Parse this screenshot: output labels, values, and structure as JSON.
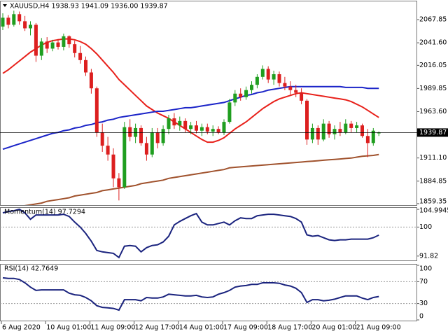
{
  "chart_data": [
    {
      "type": "candlestick",
      "title": "XAUUSD,H4  1938.93 1941.09 1936.00 1939.87",
      "up_color": "#1f9e1f",
      "down_color": "#dc1f1f",
      "ylim": [
        1857.7,
        2088.5
      ],
      "yticks": [
        2067.85,
        {
          "value": 2041.6,
          "label": "2041.60"
        },
        2016.05,
        1989.85,
        {
          "value": 1963.6,
          "label": "1963.60"
        },
        {
          "value": 1911.1,
          "label": "1911.10"
        },
        1884.85,
        1859.35
      ],
      "categories": [
        "6 Aug 2020",
        null,
        null,
        null,
        null,
        null,
        null,
        null,
        "10 Aug 01:00",
        null,
        null,
        null,
        null,
        null,
        null,
        null,
        "11 Aug 09:00",
        null,
        null,
        null,
        null,
        null,
        null,
        null,
        "12 Aug 17:00",
        null,
        null,
        null,
        null,
        null,
        null,
        null,
        "14 Aug 01:00",
        null,
        null,
        null,
        null,
        null,
        null,
        null,
        "17 Aug 09:00",
        null,
        null,
        null,
        null,
        null,
        null,
        null,
        "18 Aug 17:00",
        null,
        null,
        null,
        null,
        null,
        null,
        null,
        "20 Aug 01:00",
        null,
        null,
        null,
        null,
        null,
        null,
        null,
        "21 Aug 09:00",
        null,
        null,
        null,
        null
      ],
      "ohlc": [
        [
          2060,
          2075,
          2056,
          2070
        ],
        [
          2070,
          2073,
          2058,
          2062
        ],
        [
          2062,
          2078,
          2060,
          2074
        ],
        [
          2074,
          2077,
          2062,
          2066
        ],
        [
          2066,
          2072,
          2055,
          2058
        ],
        [
          2058,
          2066,
          2050,
          2062
        ],
        [
          2062,
          2064,
          2020,
          2027
        ],
        [
          2027,
          2047,
          2022,
          2043
        ],
        [
          2043,
          2048,
          2030,
          2035
        ],
        [
          2035,
          2045,
          2032,
          2042
        ],
        [
          2042,
          2046,
          2034,
          2037
        ],
        [
          2037,
          2052,
          2033,
          2049
        ],
        [
          2049,
          2050,
          2036,
          2040
        ],
        [
          2040,
          2044,
          2025,
          2030
        ],
        [
          2030,
          2038,
          2018,
          2022
        ],
        [
          2022,
          2026,
          2004,
          2008
        ],
        [
          2008,
          2012,
          1984,
          1990
        ],
        [
          1990,
          1992,
          1935,
          1940
        ],
        [
          1940,
          1950,
          1918,
          1925
        ],
        [
          1925,
          1935,
          1908,
          1915
        ],
        [
          1915,
          1922,
          1878,
          1888
        ],
        [
          1888,
          1894,
          1863,
          1878
        ],
        [
          1878,
          1952,
          1876,
          1946
        ],
        [
          1946,
          1955,
          1930,
          1935
        ],
        [
          1935,
          1950,
          1928,
          1945
        ],
        [
          1945,
          1948,
          1925,
          1928
        ],
        [
          1928,
          1935,
          1908,
          1915
        ],
        [
          1915,
          1945,
          1912,
          1940
        ],
        [
          1940,
          1945,
          1922,
          1928
        ],
        [
          1928,
          1948,
          1925,
          1944
        ],
        [
          1944,
          1960,
          1938,
          1956
        ],
        [
          1956,
          1962,
          1944,
          1948
        ],
        [
          1948,
          1958,
          1942,
          1953
        ],
        [
          1953,
          1956,
          1940,
          1944
        ],
        [
          1944,
          1952,
          1938,
          1948
        ],
        [
          1948,
          1953,
          1939,
          1942
        ],
        [
          1942,
          1950,
          1936,
          1946
        ],
        [
          1946,
          1950,
          1938,
          1941
        ],
        [
          1941,
          1948,
          1936,
          1944
        ],
        [
          1944,
          1947,
          1938,
          1940
        ],
        [
          1940,
          1955,
          1937,
          1952
        ],
        [
          1952,
          1978,
          1950,
          1974
        ],
        [
          1974,
          1988,
          1970,
          1984
        ],
        [
          1984,
          1990,
          1976,
          1980
        ],
        [
          1980,
          1992,
          1977,
          1988
        ],
        [
          1988,
          1998,
          1984,
          1994
        ],
        [
          1994,
          2006,
          1990,
          2003
        ],
        [
          2003,
          2016,
          2000,
          2012
        ],
        [
          2012,
          2015,
          1996,
          2000
        ],
        [
          2000,
          2010,
          1994,
          2006
        ],
        [
          2006,
          2009,
          1992,
          1996
        ],
        [
          1996,
          2003,
          1988,
          1992
        ],
        [
          1992,
          1998,
          1983,
          1988
        ],
        [
          1988,
          1994,
          1980,
          1985
        ],
        [
          1985,
          1990,
          1972,
          1976
        ],
        [
          1976,
          1978,
          1926,
          1932
        ],
        [
          1932,
          1950,
          1928,
          1945
        ],
        [
          1945,
          1948,
          1926,
          1932
        ],
        [
          1932,
          1955,
          1930,
          1950
        ],
        [
          1950,
          1953,
          1934,
          1938
        ],
        [
          1938,
          1948,
          1932,
          1944
        ],
        [
          1944,
          1952,
          1936,
          1940
        ],
        [
          1940,
          1955,
          1938,
          1950
        ],
        [
          1950,
          1953,
          1940,
          1945
        ],
        [
          1945,
          1952,
          1940,
          1948
        ],
        [
          1948,
          1950,
          1934,
          1936
        ],
        [
          1936,
          1944,
          1912,
          1928
        ],
        [
          1928,
          1945,
          1925,
          1942
        ],
        [
          1938.93,
          1941.09,
          1936.0,
          1939.87
        ]
      ],
      "overlays": [
        {
          "color": "#e8201a",
          "values": [
            2007,
            2011,
            2016,
            2021,
            2026,
            2031,
            2035,
            2039,
            2042,
            2044,
            2045,
            2046,
            2046,
            2045,
            2043,
            2040,
            2035,
            2029,
            2022,
            2015,
            2008,
            2000,
            1994,
            1988,
            1982,
            1976,
            1970,
            1966,
            1962,
            1959,
            1956,
            1952,
            1948,
            1944,
            1940,
            1936,
            1932,
            1929,
            1929,
            1931,
            1934,
            1939,
            1944,
            1948,
            1952,
            1957,
            1962,
            1967,
            1971,
            1975,
            1978,
            1980,
            1982,
            1984,
            1985,
            1984,
            1983,
            1982,
            1981,
            1980,
            1979,
            1978,
            1977,
            1975,
            1972,
            1969,
            1965,
            1961,
            1957
          ]
        },
        {
          "color": "#1b24c8",
          "values": [
            1921,
            1923,
            1925,
            1927,
            1929,
            1931,
            1933,
            1935,
            1937,
            1939,
            1940,
            1942,
            1943,
            1945,
            1946,
            1948,
            1949,
            1951,
            1952,
            1954,
            1955,
            1957,
            1958,
            1959,
            1960,
            1961,
            1962,
            1963,
            1964,
            1964,
            1965,
            1966,
            1967,
            1968,
            1968,
            1969,
            1970,
            1971,
            1972,
            1973,
            1974,
            1976,
            1978,
            1980,
            1982,
            1983,
            1985,
            1986,
            1988,
            1989,
            1990,
            1991,
            1992,
            1992,
            1992,
            1992,
            1992,
            1992,
            1992,
            1992,
            1992,
            1992,
            1991,
            1991,
            1991,
            1991,
            1990,
            1990,
            1990
          ]
        },
        {
          "color": "#a0522d",
          "values": [
            1852,
            1853,
            1854,
            1856,
            1857,
            1858,
            1859,
            1860,
            1862,
            1863,
            1864,
            1865,
            1866,
            1868,
            1869,
            1870,
            1871,
            1872,
            1874,
            1875,
            1876,
            1877,
            1878,
            1879,
            1880,
            1882,
            1883,
            1884,
            1885,
            1886,
            1888,
            1889,
            1890,
            1891,
            1892,
            1893,
            1894,
            1895,
            1896,
            1897,
            1898,
            1900,
            1900.5,
            1901,
            1901.5,
            1902,
            1902.5,
            1903,
            1903.5,
            1904,
            1904.5,
            1905,
            1905.5,
            1906,
            1906.5,
            1907,
            1907.5,
            1908,
            1908.5,
            1909,
            1909.5,
            1910,
            1910.5,
            1911,
            1912,
            1913,
            1913.5,
            1914,
            1915
          ]
        }
      ]
    },
    {
      "type": "line",
      "title": "Momentum(14) 97.7294",
      "color": "#1a237e",
      "ylim": [
        90.6,
        105.6
      ],
      "yticks": [
        104.9945,
        100,
        91.82
      ],
      "levels": [
        100
      ],
      "values": [
        104.0,
        104.4,
        104.6,
        105.0,
        104.0,
        102.2,
        103.4,
        103.4,
        103.4,
        103.4,
        103.4,
        103.6,
        103.0,
        101.4,
        100.0,
        98.2,
        96.0,
        93.4,
        93.0,
        92.8,
        92.6,
        91.4,
        94.6,
        94.8,
        94.6,
        93.0,
        94.2,
        94.8,
        95.0,
        95.8,
        97.4,
        100.6,
        101.6,
        102.4,
        103.2,
        103.8,
        101.4,
        100.6,
        100.6,
        101.0,
        101.4,
        100.6,
        101.8,
        102.6,
        102.4,
        102.4,
        103.2,
        103.4,
        103.6,
        103.6,
        103.4,
        103.2,
        103.0,
        102.4,
        101.4,
        97.8,
        97.4,
        97.6,
        97.0,
        96.4,
        96.2,
        96.4,
        96.4,
        96.6,
        96.6,
        96.6,
        96.6,
        97.0,
        97.73
      ]
    },
    {
      "type": "line",
      "title": "RSI(14) 42.7649",
      "color": "#1a237e",
      "ylim": [
        0,
        100
      ],
      "yticks": [
        100,
        70,
        30,
        0
      ],
      "levels": [
        70,
        30
      ],
      "values": [
        77,
        76,
        76,
        74,
        68,
        60,
        54,
        55,
        55,
        55,
        55,
        55,
        49,
        46,
        45,
        41,
        35,
        26,
        23,
        22,
        21,
        18,
        37,
        37,
        37,
        35,
        41,
        40,
        40,
        42,
        47,
        46,
        45,
        44,
        44,
        45,
        42,
        41,
        42,
        47,
        50,
        54,
        60,
        62,
        63,
        65,
        65,
        68,
        68,
        68,
        67,
        64,
        62,
        58,
        50,
        32,
        37,
        37,
        35,
        36,
        38,
        41,
        44,
        44,
        44,
        40,
        37,
        41,
        42.76
      ]
    }
  ]
}
